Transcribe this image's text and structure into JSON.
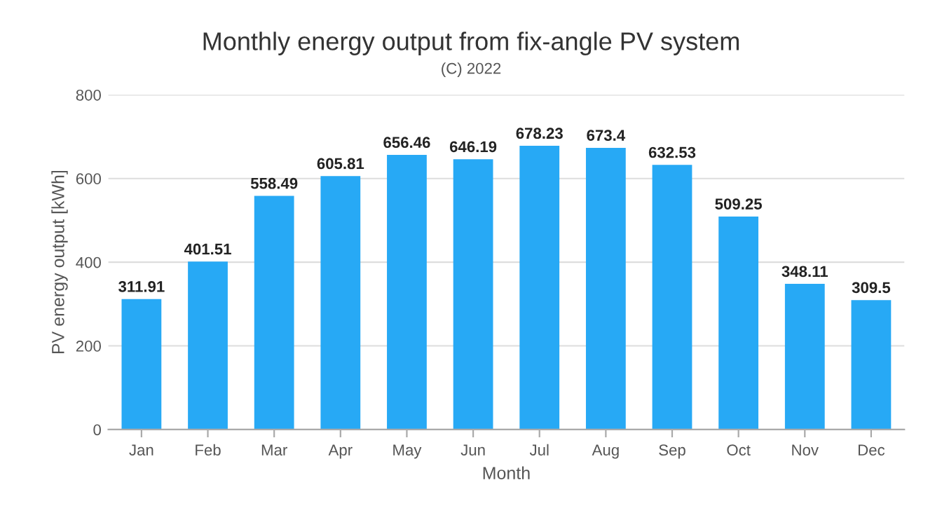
{
  "chart_data": {
    "type": "bar",
    "title": "Monthly energy output from fix-angle PV system",
    "subtitle": "(C) 2022",
    "xlabel": "Month",
    "ylabel": "PV energy output [kWh]",
    "categories": [
      "Jan",
      "Feb",
      "Mar",
      "Apr",
      "May",
      "Jun",
      "Jul",
      "Aug",
      "Sep",
      "Oct",
      "Nov",
      "Dec"
    ],
    "values": [
      311.91,
      401.51,
      558.49,
      605.81,
      656.46,
      646.19,
      678.23,
      673.4,
      632.53,
      509.25,
      348.11,
      309.5
    ],
    "color": "#27a9f5",
    "ylim": [
      0,
      800
    ],
    "yticks": [
      0,
      200,
      400,
      600,
      800
    ],
    "grid": "y",
    "data_labels": true
  }
}
